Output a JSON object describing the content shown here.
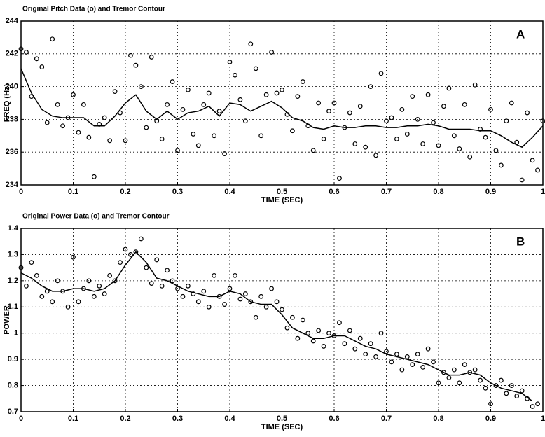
{
  "chart_data": [
    {
      "type": "scatter",
      "title": "Original Pitch Data (o) and Tremor Contour",
      "xlabel": "TIME (SEC)",
      "ylabel": "FREQ (Hz)",
      "annotation": "A",
      "xlim": [
        0,
        1
      ],
      "xticks": [
        0,
        0.1,
        0.2,
        0.3,
        0.4,
        0.5,
        0.6,
        0.7,
        0.8,
        0.9,
        1
      ],
      "ylim": [
        234,
        244
      ],
      "yticks": [
        234,
        236,
        238,
        240,
        242,
        244
      ],
      "grid": true,
      "series": [
        {
          "style": "marker",
          "color": "#000000",
          "x": [
            0,
            0.01,
            0.02,
            0.03,
            0.04,
            0.05,
            0.06,
            0.07,
            0.08,
            0.09,
            0.1,
            0.11,
            0.12,
            0.13,
            0.14,
            0.15,
            0.16,
            0.17,
            0.18,
            0.19,
            0.2,
            0.21,
            0.22,
            0.23,
            0.24,
            0.25,
            0.26,
            0.27,
            0.28,
            0.29,
            0.3,
            0.31,
            0.32,
            0.33,
            0.34,
            0.35,
            0.36,
            0.37,
            0.38,
            0.39,
            0.4,
            0.41,
            0.42,
            0.43,
            0.44,
            0.45,
            0.46,
            0.47,
            0.48,
            0.49,
            0.5,
            0.51,
            0.52,
            0.53,
            0.54,
            0.55,
            0.56,
            0.57,
            0.58,
            0.59,
            0.6,
            0.61,
            0.62,
            0.63,
            0.64,
            0.65,
            0.66,
            0.67,
            0.68,
            0.69,
            0.7,
            0.71,
            0.72,
            0.73,
            0.74,
            0.75,
            0.76,
            0.77,
            0.78,
            0.79,
            0.8,
            0.81,
            0.82,
            0.83,
            0.84,
            0.85,
            0.86,
            0.87,
            0.88,
            0.89,
            0.9,
            0.91,
            0.92,
            0.93,
            0.94,
            0.95,
            0.96,
            0.97,
            0.98,
            0.99,
            1
          ],
          "values": [
            242.3,
            242.1,
            239.4,
            241.7,
            241.2,
            237.8,
            242.9,
            238.9,
            237.6,
            238.1,
            239.5,
            237.2,
            238.9,
            236.9,
            234.5,
            237.7,
            238.1,
            236.7,
            239.7,
            238.4,
            236.7,
            241.9,
            241.3,
            240.0,
            237.5,
            241.8,
            237.9,
            236.8,
            238.9,
            240.3,
            236.1,
            238.6,
            239.8,
            237.1,
            236.4,
            238.9,
            239.6,
            237.0,
            238.5,
            235.9,
            241.5,
            240.7,
            239.2,
            237.9,
            242.6,
            241.1,
            237.0,
            239.5,
            242.1,
            239.6,
            239.8,
            238.3,
            237.3,
            239.4,
            240.3,
            237.6,
            236.1,
            239.0,
            236.8,
            238.5,
            239.0,
            234.4,
            237.5,
            238.4,
            236.5,
            238.8,
            236.3,
            240.0,
            235.8,
            240.8,
            237.9,
            238.1,
            236.8,
            238.6,
            237.1,
            239.4,
            238.0,
            236.5,
            239.5,
            237.8,
            236.4,
            238.8,
            239.9,
            237.0,
            236.2,
            238.9,
            235.7,
            240.1,
            237.4,
            236.9,
            238.6,
            236.1,
            235.2,
            237.9,
            239.0,
            236.6,
            234.3,
            238.4,
            235.5,
            234.9,
            237.9
          ]
        },
        {
          "style": "line",
          "color": "#000000",
          "x": [
            0,
            0.02,
            0.04,
            0.06,
            0.08,
            0.1,
            0.12,
            0.14,
            0.16,
            0.18,
            0.2,
            0.22,
            0.24,
            0.26,
            0.28,
            0.3,
            0.32,
            0.34,
            0.36,
            0.38,
            0.4,
            0.42,
            0.44,
            0.46,
            0.48,
            0.5,
            0.52,
            0.54,
            0.56,
            0.58,
            0.6,
            0.62,
            0.64,
            0.66,
            0.68,
            0.7,
            0.72,
            0.74,
            0.76,
            0.78,
            0.8,
            0.82,
            0.84,
            0.86,
            0.88,
            0.9,
            0.92,
            0.94,
            0.96,
            0.98,
            1
          ],
          "values": [
            241.1,
            239.6,
            238.6,
            238.2,
            238.1,
            238.1,
            238.1,
            237.6,
            237.6,
            238.2,
            239.0,
            239.5,
            238.5,
            238.0,
            238.5,
            238.0,
            238.4,
            238.5,
            238.8,
            238.2,
            239.0,
            238.9,
            238.5,
            238.8,
            239.1,
            238.7,
            238.1,
            237.9,
            237.5,
            237.4,
            237.6,
            237.5,
            237.5,
            237.6,
            237.6,
            237.5,
            237.5,
            237.6,
            237.6,
            237.7,
            237.6,
            237.4,
            237.4,
            237.4,
            237.3,
            237.3,
            237.0,
            236.6,
            236.3,
            236.9,
            237.6
          ]
        }
      ]
    },
    {
      "type": "scatter",
      "title": "Original Power Data (o) and Tremor Contour",
      "xlabel": "TIME (SEC)",
      "ylabel": "POWER",
      "annotation": "B",
      "xlim": [
        0,
        1
      ],
      "xticks": [
        0,
        0.1,
        0.2,
        0.3,
        0.4,
        0.5,
        0.6,
        0.7,
        0.8,
        0.9,
        1
      ],
      "ylim": [
        0.7,
        1.4
      ],
      "yticks": [
        0.7,
        0.8,
        0.9,
        1,
        1.1,
        1.2,
        1.3,
        1.4
      ],
      "grid": true,
      "series": [
        {
          "style": "marker",
          "color": "#000000",
          "x": [
            0,
            0.01,
            0.02,
            0.03,
            0.04,
            0.05,
            0.06,
            0.07,
            0.08,
            0.09,
            0.1,
            0.11,
            0.12,
            0.13,
            0.14,
            0.15,
            0.16,
            0.17,
            0.18,
            0.19,
            0.2,
            0.21,
            0.22,
            0.23,
            0.24,
            0.25,
            0.26,
            0.27,
            0.28,
            0.29,
            0.3,
            0.31,
            0.32,
            0.33,
            0.34,
            0.35,
            0.36,
            0.37,
            0.38,
            0.39,
            0.4,
            0.41,
            0.42,
            0.43,
            0.44,
            0.45,
            0.46,
            0.47,
            0.48,
            0.49,
            0.5,
            0.51,
            0.52,
            0.53,
            0.54,
            0.55,
            0.56,
            0.57,
            0.58,
            0.59,
            0.6,
            0.61,
            0.62,
            0.63,
            0.64,
            0.65,
            0.66,
            0.67,
            0.68,
            0.69,
            0.7,
            0.71,
            0.72,
            0.73,
            0.74,
            0.75,
            0.76,
            0.77,
            0.78,
            0.79,
            0.8,
            0.81,
            0.82,
            0.83,
            0.84,
            0.85,
            0.86,
            0.87,
            0.88,
            0.89,
            0.9,
            0.91,
            0.92,
            0.93,
            0.94,
            0.95,
            0.96,
            0.97,
            0.98,
            0.99
          ],
          "values": [
            1.25,
            1.18,
            1.27,
            1.22,
            1.14,
            1.16,
            1.12,
            1.2,
            1.16,
            1.1,
            1.29,
            1.12,
            1.17,
            1.2,
            1.14,
            1.18,
            1.15,
            1.22,
            1.2,
            1.27,
            1.32,
            1.3,
            1.31,
            1.36,
            1.25,
            1.19,
            1.28,
            1.18,
            1.24,
            1.2,
            1.17,
            1.14,
            1.18,
            1.15,
            1.12,
            1.16,
            1.1,
            1.22,
            1.14,
            1.11,
            1.17,
            1.22,
            1.13,
            1.15,
            1.12,
            1.06,
            1.14,
            1.1,
            1.17,
            1.12,
            1.09,
            1.02,
            1.06,
            0.98,
            1.05,
            1.0,
            0.97,
            1.01,
            0.95,
            1.0,
            0.99,
            1.04,
            0.96,
            1.01,
            0.94,
            0.98,
            0.92,
            0.96,
            0.91,
            1.0,
            0.93,
            0.89,
            0.92,
            0.86,
            0.91,
            0.88,
            0.92,
            0.87,
            0.94,
            0.89,
            0.81,
            0.85,
            0.83,
            0.86,
            0.81,
            0.88,
            0.85,
            0.86,
            0.82,
            0.79,
            0.73,
            0.8,
            0.82,
            0.77,
            0.8,
            0.76,
            0.78,
            0.75,
            0.72,
            0.73
          ]
        },
        {
          "style": "line",
          "color": "#000000",
          "x": [
            0,
            0.02,
            0.04,
            0.06,
            0.08,
            0.1,
            0.12,
            0.14,
            0.16,
            0.18,
            0.2,
            0.22,
            0.24,
            0.26,
            0.28,
            0.3,
            0.32,
            0.34,
            0.36,
            0.38,
            0.4,
            0.42,
            0.44,
            0.46,
            0.48,
            0.5,
            0.52,
            0.54,
            0.56,
            0.58,
            0.6,
            0.62,
            0.64,
            0.66,
            0.68,
            0.7,
            0.72,
            0.74,
            0.76,
            0.78,
            0.8,
            0.82,
            0.84,
            0.86,
            0.88,
            0.9,
            0.92,
            0.94,
            0.96,
            0.98
          ],
          "values": [
            1.23,
            1.21,
            1.18,
            1.16,
            1.16,
            1.17,
            1.17,
            1.16,
            1.17,
            1.2,
            1.26,
            1.31,
            1.27,
            1.21,
            1.2,
            1.18,
            1.16,
            1.15,
            1.14,
            1.14,
            1.16,
            1.15,
            1.12,
            1.11,
            1.11,
            1.07,
            1.02,
            1.0,
            0.98,
            0.98,
            0.99,
            0.99,
            0.97,
            0.95,
            0.94,
            0.92,
            0.91,
            0.9,
            0.89,
            0.88,
            0.86,
            0.84,
            0.84,
            0.85,
            0.84,
            0.81,
            0.79,
            0.78,
            0.77,
            0.74
          ]
        }
      ]
    }
  ]
}
